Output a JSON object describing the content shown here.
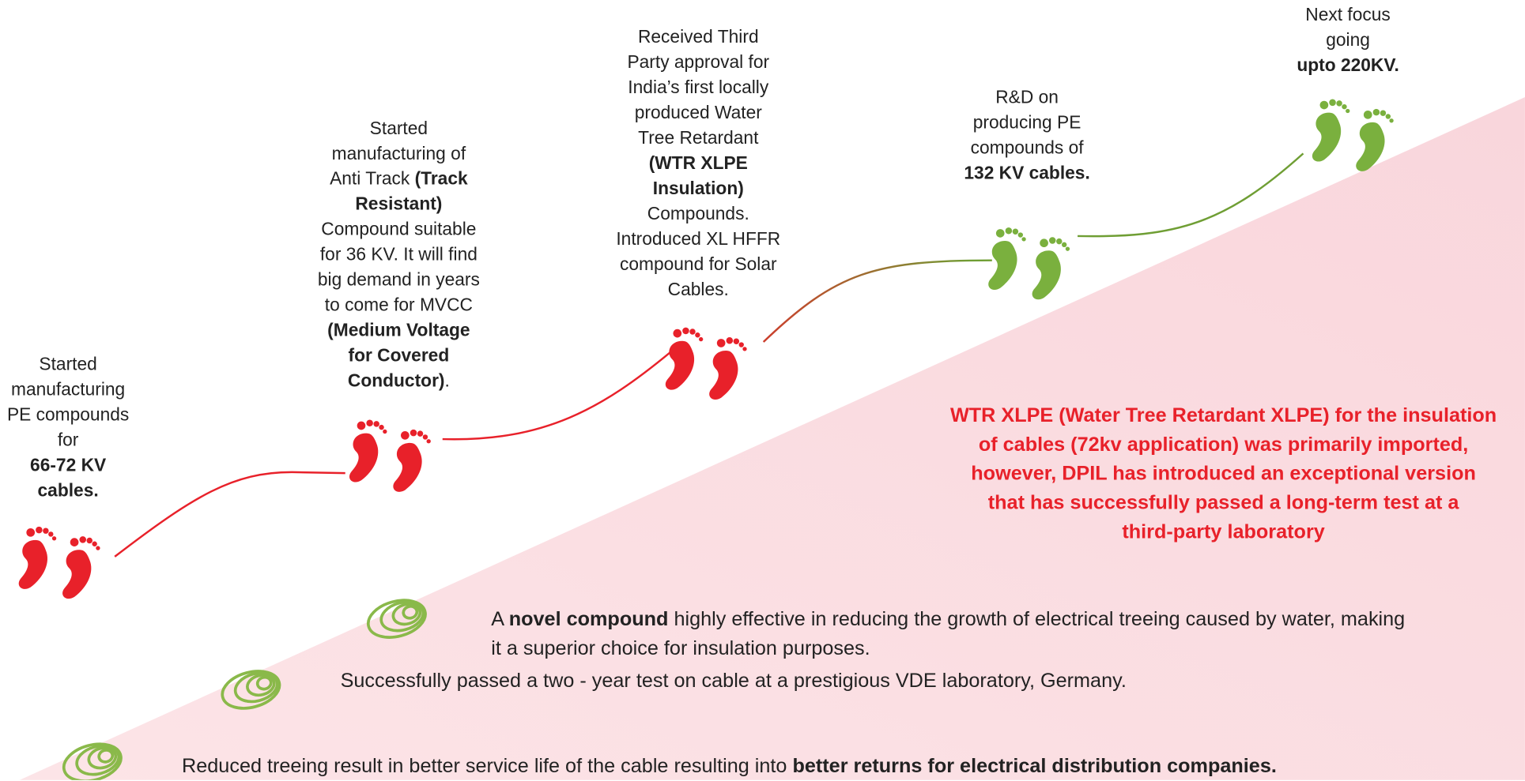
{
  "milestones": [
    {
      "color": "#e8212a",
      "lines": [
        [
          {
            "text": "Started"
          }
        ],
        [
          {
            "text": "manufacturing"
          }
        ],
        [
          {
            "text": "PE compounds"
          }
        ],
        [
          {
            "text": "for"
          }
        ],
        [
          {
            "text": "66-72 KV",
            "bold": true
          }
        ],
        [
          {
            "text": "cables.",
            "bold": true
          }
        ]
      ]
    },
    {
      "color": "#e8212a",
      "lines": [
        [
          {
            "text": "Started"
          }
        ],
        [
          {
            "text": "manufacturing of"
          }
        ],
        [
          {
            "text": "Anti Track "
          },
          {
            "text": "(Track",
            "bold": true
          }
        ],
        [
          {
            "text": "Resistant)",
            "bold": true
          }
        ],
        [
          {
            "text": "Compound suitable"
          }
        ],
        [
          {
            "text": "for 36 KV. It will find"
          }
        ],
        [
          {
            "text": "big demand in years"
          }
        ],
        [
          {
            "text": "to come for MVCC"
          }
        ],
        [
          {
            "text": "(Medium Voltage",
            "bold": true
          }
        ],
        [
          {
            "text": "for Covered",
            "bold": true
          }
        ],
        [
          {
            "text": "Conductor)",
            "bold": true
          },
          {
            "text": "."
          }
        ]
      ]
    },
    {
      "color": "#e8212a",
      "lines": [
        [
          {
            "text": "Received Third"
          }
        ],
        [
          {
            "text": "Party approval for"
          }
        ],
        [
          {
            "text": "India’s first locally"
          }
        ],
        [
          {
            "text": "produced  Water"
          }
        ],
        [
          {
            "text": "Tree Retardant"
          }
        ],
        [
          {
            "text": "(WTR XLPE",
            "bold": true
          }
        ],
        [
          {
            "text": "Insulation)",
            "bold": true
          }
        ],
        [
          {
            "text": "Compounds."
          }
        ],
        [
          {
            "text": "Introduced XL HFFR"
          }
        ],
        [
          {
            "text": "compound for Solar"
          }
        ],
        [
          {
            "text": "Cables."
          }
        ]
      ]
    },
    {
      "color": "#7ab03e",
      "lines": [
        [
          {
            "text": "R&D on"
          }
        ],
        [
          {
            "text": "producing PE"
          }
        ],
        [
          {
            "text": "compounds of"
          }
        ],
        [
          {
            "text": "132 KV cables.",
            "bold": true
          }
        ]
      ]
    },
    {
      "color": "#7ab03e",
      "lines": [
        [
          {
            "text": "Next focus"
          }
        ],
        [
          {
            "text": "going"
          }
        ],
        [
          {
            "text": "upto 220KV.",
            "bold": true
          }
        ]
      ]
    }
  ],
  "highlight": {
    "color": "#e8212a",
    "lines": [
      "WTR XLPE (Water Tree Retardant XLPE) for the insulation",
      "of cables (72kv application) was primarily imported,",
      "however, DPIL has introduced an exceptional version",
      "that has successfully passed a long-term test at a",
      "third-party laboratory"
    ]
  },
  "points": [
    {
      "lines": [
        [
          {
            "text": "A "
          },
          {
            "text": "novel compound",
            "bold": true
          },
          {
            "text": " highly effective in reducing the growth of electrical treeing caused by water, making"
          }
        ],
        [
          {
            "text": "it a superior choice for insulation purposes."
          }
        ]
      ]
    },
    {
      "lines": [
        [
          {
            "text": "Successfully passed a two - year test on cable at a prestigious VDE laboratory, Germany."
          }
        ]
      ]
    },
    {
      "lines": [
        [
          {
            "text": "Reduced treeing result in better service life of the cable resulting into "
          },
          {
            "text": "better returns for electrical distribution companies.",
            "bold": true
          }
        ]
      ]
    }
  ]
}
